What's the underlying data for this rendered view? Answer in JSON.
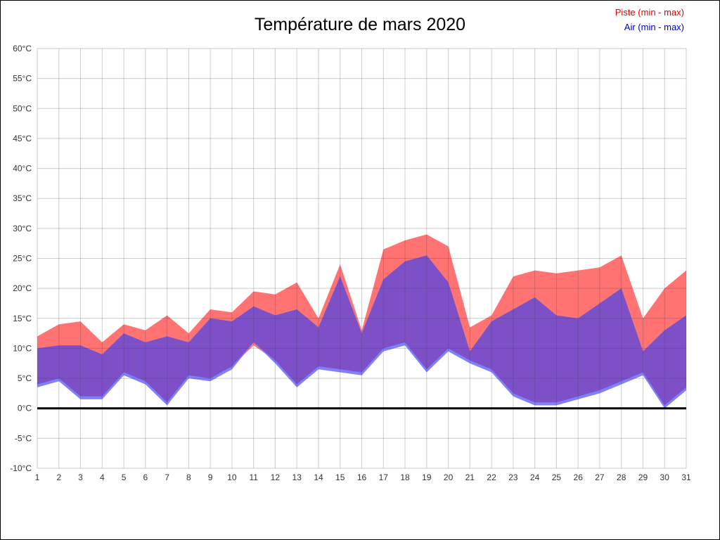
{
  "window": {
    "background": "#ffffff",
    "border_color": "#000000"
  },
  "chart_data": {
    "type": "area",
    "title": "Température de mars 2020",
    "legend_position": "top-right",
    "x": [
      1,
      2,
      3,
      4,
      5,
      6,
      7,
      8,
      9,
      10,
      11,
      12,
      13,
      14,
      15,
      16,
      17,
      18,
      19,
      20,
      21,
      22,
      23,
      24,
      25,
      26,
      27,
      28,
      29,
      30,
      31
    ],
    "ylim": [
      -10,
      60
    ],
    "y_ticks": [
      {
        "label": "60°C",
        "value": 60
      },
      {
        "label": "55°C",
        "value": 55
      },
      {
        "label": "50°C",
        "value": 50
      },
      {
        "label": "45°C",
        "value": 45
      },
      {
        "label": "40°C",
        "value": 40
      },
      {
        "label": "35°C",
        "value": 35
      },
      {
        "label": "30°C",
        "value": 30
      },
      {
        "label": "25°C",
        "value": 25
      },
      {
        "label": "20°C",
        "value": 20
      },
      {
        "label": "15°C",
        "value": 15
      },
      {
        "label": "10°C",
        "value": 10
      },
      {
        "label": "5°C",
        "value": 5
      },
      {
        "label": "0°C",
        "value": 0
      },
      {
        "label": "-5°C",
        "value": -5
      },
      {
        "label": "-10°C",
        "value": -10
      }
    ],
    "grid": true,
    "grid_color": "#3c3c3c",
    "grid_opacity": 0.25,
    "tick_color": "#333333",
    "zero_line": {
      "value": 0,
      "color": "#000000",
      "width": 3
    },
    "overlap_color": "#7d50c8",
    "series": [
      {
        "name": "Piste (min - max)",
        "band_color": "#ff7373",
        "legend_color": "#e60000",
        "min": [
          4,
          5,
          2,
          2,
          6,
          4.5,
          1,
          5.5,
          5,
          7,
          10.5,
          8,
          4,
          7,
          6.5,
          6,
          10,
          11,
          6.5,
          10,
          8,
          6.5,
          2.5,
          1,
          1,
          2,
          3,
          4.5,
          6,
          0.5,
          3.5
        ],
        "max": [
          12,
          14,
          14.5,
          11,
          14,
          13,
          15.5,
          12.5,
          16.5,
          16,
          19.5,
          19,
          21,
          15,
          24,
          13,
          26.5,
          28,
          29,
          27,
          13.5,
          15.5,
          22,
          23,
          22.5,
          23,
          23.5,
          25.5,
          15,
          20,
          23
        ]
      },
      {
        "name": "Air (min - max)",
        "band_color": "#8080ff",
        "legend_color": "#0000cc",
        "min": [
          3.5,
          4.5,
          1.5,
          1.5,
          5.5,
          4,
          0.5,
          5,
          4.5,
          6.5,
          11,
          7.5,
          3.5,
          6.5,
          6,
          5.5,
          9.5,
          10.5,
          6,
          9.5,
          7.5,
          6,
          2,
          0.5,
          0.5,
          1.5,
          2.5,
          4,
          5.5,
          0,
          3
        ],
        "max": [
          10,
          10.5,
          10.5,
          9,
          12.5,
          11,
          12,
          11,
          15,
          14.5,
          17,
          15.5,
          16.5,
          13.5,
          22,
          12.5,
          21.5,
          24.5,
          25.5,
          21,
          9.5,
          14.5,
          16.5,
          18.5,
          15.5,
          15,
          17.5,
          20,
          9.5,
          13,
          15.5
        ]
      }
    ]
  }
}
